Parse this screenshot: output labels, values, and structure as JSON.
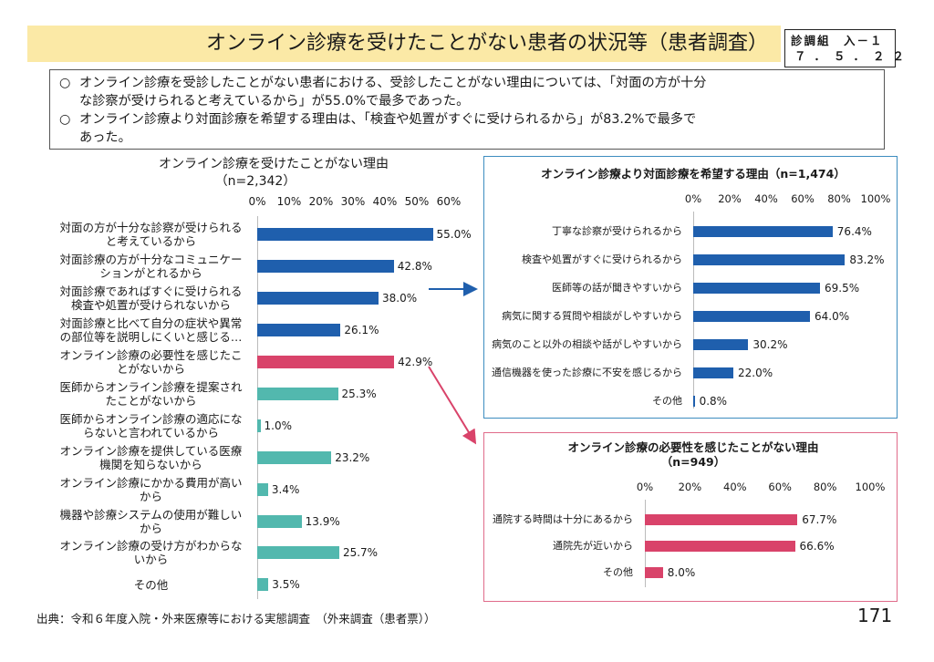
{
  "header": {
    "title": "オンライン診療を受けたことがない患者の状況等（患者調査）",
    "ref_line1": "診調組　入－１",
    "ref_line2": "７．５．２２"
  },
  "summary": [
    {
      "marker": "○",
      "line1": "オンライン診療を受診したことがない患者における、受診したことがない理由については、「対面の方が十分",
      "line2": "な診察が受けられると考えているから」が55.0%で最多であった。"
    },
    {
      "marker": "○",
      "line1": "オンライン診療より対面診療を希望する理由は、「検査や処置がすぐに受けられるから」が83.2%で最多で",
      "line2": "あった。"
    }
  ],
  "colors": {
    "blue": "#1f5fad",
    "pink": "#d9436a",
    "teal": "#52b8ae",
    "title_bg": "#fbe9a6",
    "panel_blue": "#3d8dc0",
    "panel_pink": "#e06b8a"
  },
  "chart_data": [
    {
      "type": "bar",
      "orientation": "horizontal",
      "title": "オンライン診療を受けたことがない理由",
      "subtitle": "（n=2,342）",
      "xlim": [
        0,
        60
      ],
      "ticks": [
        "0%",
        "10%",
        "20%",
        "30%",
        "40%",
        "50%",
        "60%"
      ],
      "categories": [
        [
          "対面の方が十分な診察が受けられる",
          "と考えているから"
        ],
        [
          "対面診療の方が十分なコミュニケー",
          "ションがとれるから"
        ],
        [
          "対面診療であればすぐに受けられる",
          "検査や処置が受けられないから"
        ],
        [
          "対面診療と比べて自分の症状や異常",
          "の部位等を説明しにくいと感じる…"
        ],
        [
          "オンライン診療の必要性を感じたこ",
          "とがないから"
        ],
        [
          "医師からオンライン診療を提案され",
          "たことがないから"
        ],
        [
          "医師からオンライン診療の適応にな",
          "らないと言われているから"
        ],
        [
          "オンライン診療を提供している医療",
          "機関を知らないから"
        ],
        [
          "オンライン診療にかかる費用が高い",
          "から"
        ],
        [
          "機器や診療システムの使用が難しい",
          "から"
        ],
        [
          "オンライン診療の受け方がわからな",
          "いから"
        ],
        [
          "その他"
        ]
      ],
      "values": [
        55.0,
        42.8,
        38.0,
        26.1,
        42.9,
        25.3,
        1.0,
        23.2,
        3.4,
        13.9,
        25.7,
        3.5
      ],
      "labels": [
        "55.0%",
        "42.8%",
        "38.0%",
        "26.1%",
        "42.9%",
        "25.3%",
        "1.0%",
        "23.2%",
        "3.4%",
        "13.9%",
        "25.7%",
        "3.5%"
      ],
      "bar_colors": [
        "blue",
        "blue",
        "blue",
        "blue",
        "pink",
        "teal",
        "teal",
        "teal",
        "teal",
        "teal",
        "teal",
        "teal"
      ]
    },
    {
      "type": "bar",
      "orientation": "horizontal",
      "title": "オンライン診療より対面診療を希望する理由（n=1,474）",
      "xlim": [
        0,
        100
      ],
      "ticks": [
        "0%",
        "20%",
        "40%",
        "60%",
        "80%",
        "100%"
      ],
      "categories": [
        "丁寧な診察が受けられるから",
        "検査や処置がすぐに受けられるから",
        "医師等の話が聞きやすいから",
        "病気に関する質問や相談がしやすいから",
        "病気のこと以外の相談や話がしやすいから",
        "通信機器を使った診療に不安を感じるから",
        "その他"
      ],
      "values": [
        76.4,
        83.2,
        69.5,
        64.0,
        30.2,
        22.0,
        0.8
      ],
      "labels": [
        "76.4%",
        "83.2%",
        "69.5%",
        "64.0%",
        "30.2%",
        "22.0%",
        "0.8%"
      ],
      "bar_color": "blue"
    },
    {
      "type": "bar",
      "orientation": "horizontal",
      "title": "オンライン診療の必要性を感じたことがない理由",
      "subtitle": "（n=949）",
      "xlim": [
        0,
        100
      ],
      "ticks": [
        "0%",
        "20%",
        "40%",
        "60%",
        "80%",
        "100%"
      ],
      "categories": [
        "通院する時間は十分にあるから",
        "通院先が近いから",
        "その他"
      ],
      "values": [
        67.7,
        66.6,
        8.0
      ],
      "labels": [
        "67.7%",
        "66.6%",
        "8.0%"
      ],
      "bar_color": "pink"
    }
  ],
  "footer": {
    "source": "出典：令和６年度入院・外来医療等における実態調査　（外来調査（患者票））",
    "page_number": "171"
  }
}
